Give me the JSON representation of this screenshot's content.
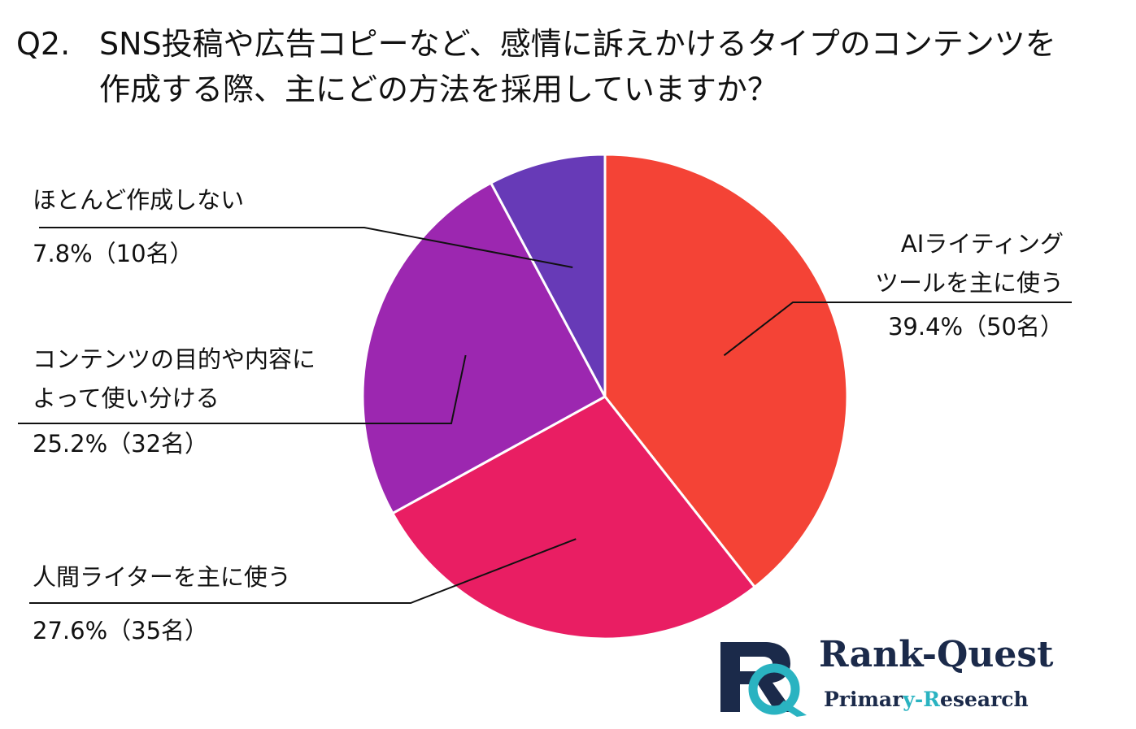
{
  "title": {
    "number": "Q2.",
    "line1": "SNS投稿や広告コピーなど、感情に訴えかけるタイプのコンテンツを",
    "line2": "作成する際、主にどの方法を採用していますか？"
  },
  "chart_data": {
    "type": "pie",
    "start_angle_deg": 0,
    "direction": "clockwise",
    "slice_border_color": "#ffffff",
    "slices": [
      {
        "label_lines": [
          "AIライティング",
          "ツールを主に使う"
        ],
        "value_text": "39.4%（50名）",
        "percent": 39.4,
        "count": 50,
        "color": "#f44336"
      },
      {
        "label_lines": [
          "人間ライターを主に使う"
        ],
        "value_text": "27.6%（35名）",
        "percent": 27.6,
        "count": 35,
        "color": "#e91e63"
      },
      {
        "label_lines": [
          "コンテンツの目的や内容に",
          "よって使い分ける"
        ],
        "value_text": "25.2%（32名）",
        "percent": 25.2,
        "count": 32,
        "color": "#9c27b0"
      },
      {
        "label_lines": [
          "ほとんど作成しない"
        ],
        "value_text": "7.8%（10名）",
        "percent": 7.8,
        "count": 10,
        "color": "#673ab7"
      }
    ]
  },
  "logo": {
    "brand": "Rank-Quest",
    "sub_part1": "Primar",
    "sub_accent": "y-R",
    "sub_part2": "esearch",
    "icon": "rq-monogram-icon",
    "colors": {
      "navy": "#1b2a4a",
      "teal": "#2ab3c1"
    }
  }
}
